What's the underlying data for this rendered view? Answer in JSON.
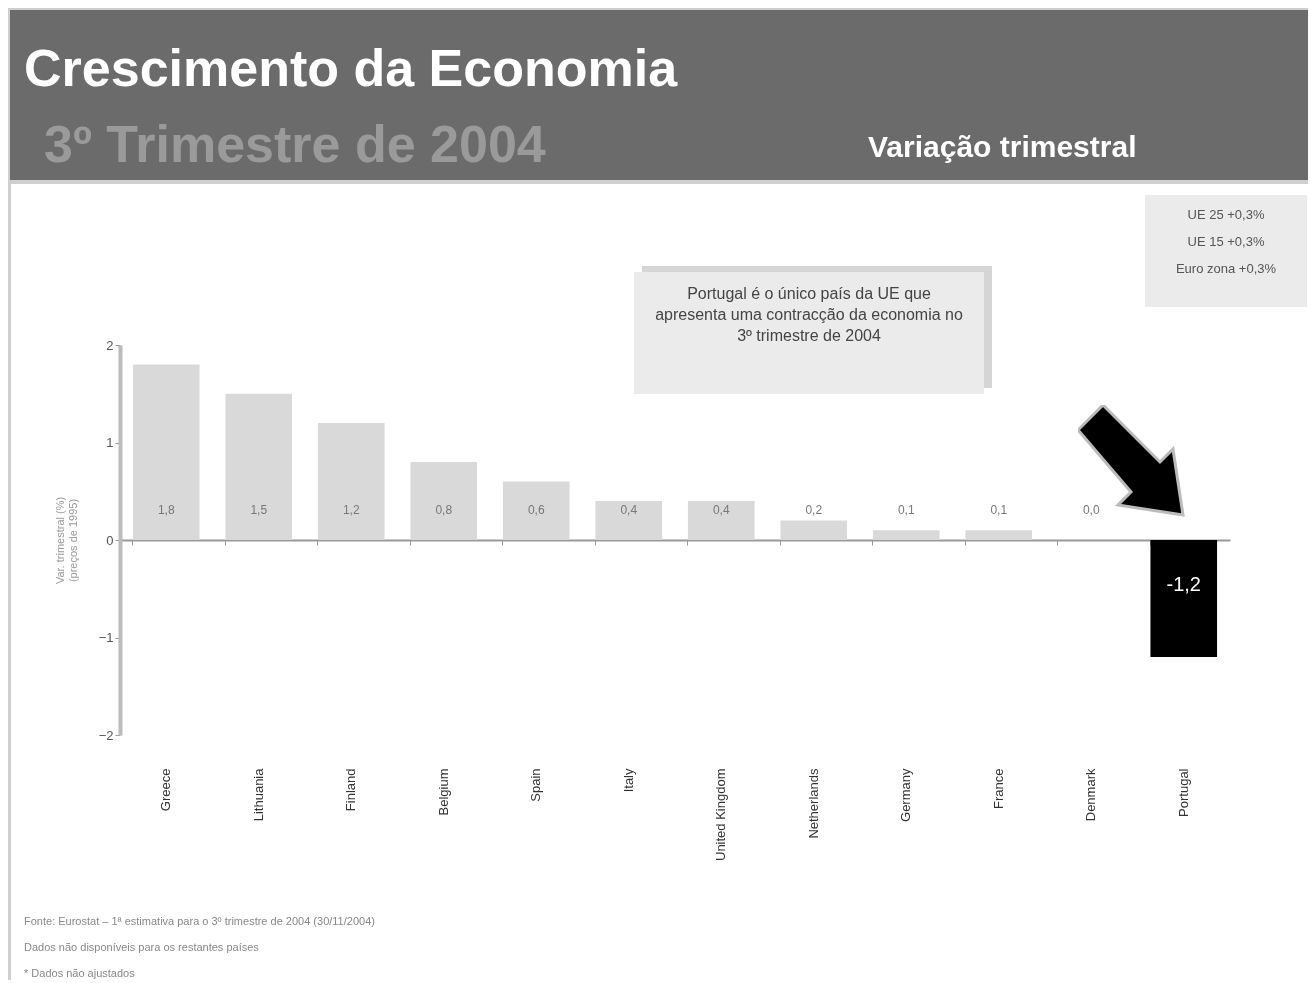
{
  "chart_data": {
    "type": "bar",
    "title": "Crescimento da Economia",
    "subtitle": "3º Trimestre de 2004",
    "ylabel": "Var. trimestral (%)\n(preços de 1995)",
    "categories": [
      "Greece",
      "Lithuania",
      "Finland",
      "Belgium",
      "Spain",
      "Italy",
      "United Kingdom",
      "Netherlands",
      "Germany",
      "France",
      "Denmark",
      "Portugal"
    ],
    "values": [
      1.8,
      1.5,
      1.2,
      0.8,
      0.6,
      0.4,
      0.4,
      0.2,
      0.1,
      0.1,
      0.0,
      -1.2
    ],
    "value_labels": [
      "1,8",
      "1,5",
      "1,2",
      "0,8",
      "0,6",
      "0,4",
      "0,4",
      "0,2",
      "0,1",
      "0,1",
      "0,0",
      "-1,2"
    ],
    "colors": [
      "#d9d9d9",
      "#d9d9d9",
      "#d9d9d9",
      "#d9d9d9",
      "#d9d9d9",
      "#d9d9d9",
      "#d9d9d9",
      "#d9d9d9",
      "#d9d9d9",
      "#d9d9d9",
      "#d9d9d9",
      "#000000"
    ],
    "ylim": [
      -2,
      2
    ],
    "yticks": [
      -2,
      -1,
      0,
      1,
      2
    ],
    "annotations": [
      "Variação trimestral",
      "UE 25 +0,3%",
      "UE 15 +0,3%",
      "Euro zona +0,3%",
      "Portugal é o único país da UE que apresenta uma contracção da economia no 3º trimestre de 2004",
      "Fonte: Eurostat – 1ª estimativa para o 3º trimestre de 2004 (30/11/2004)",
      "Dados não disponíveis para os restantes países",
      "* Dados não ajustados"
    ]
  }
}
